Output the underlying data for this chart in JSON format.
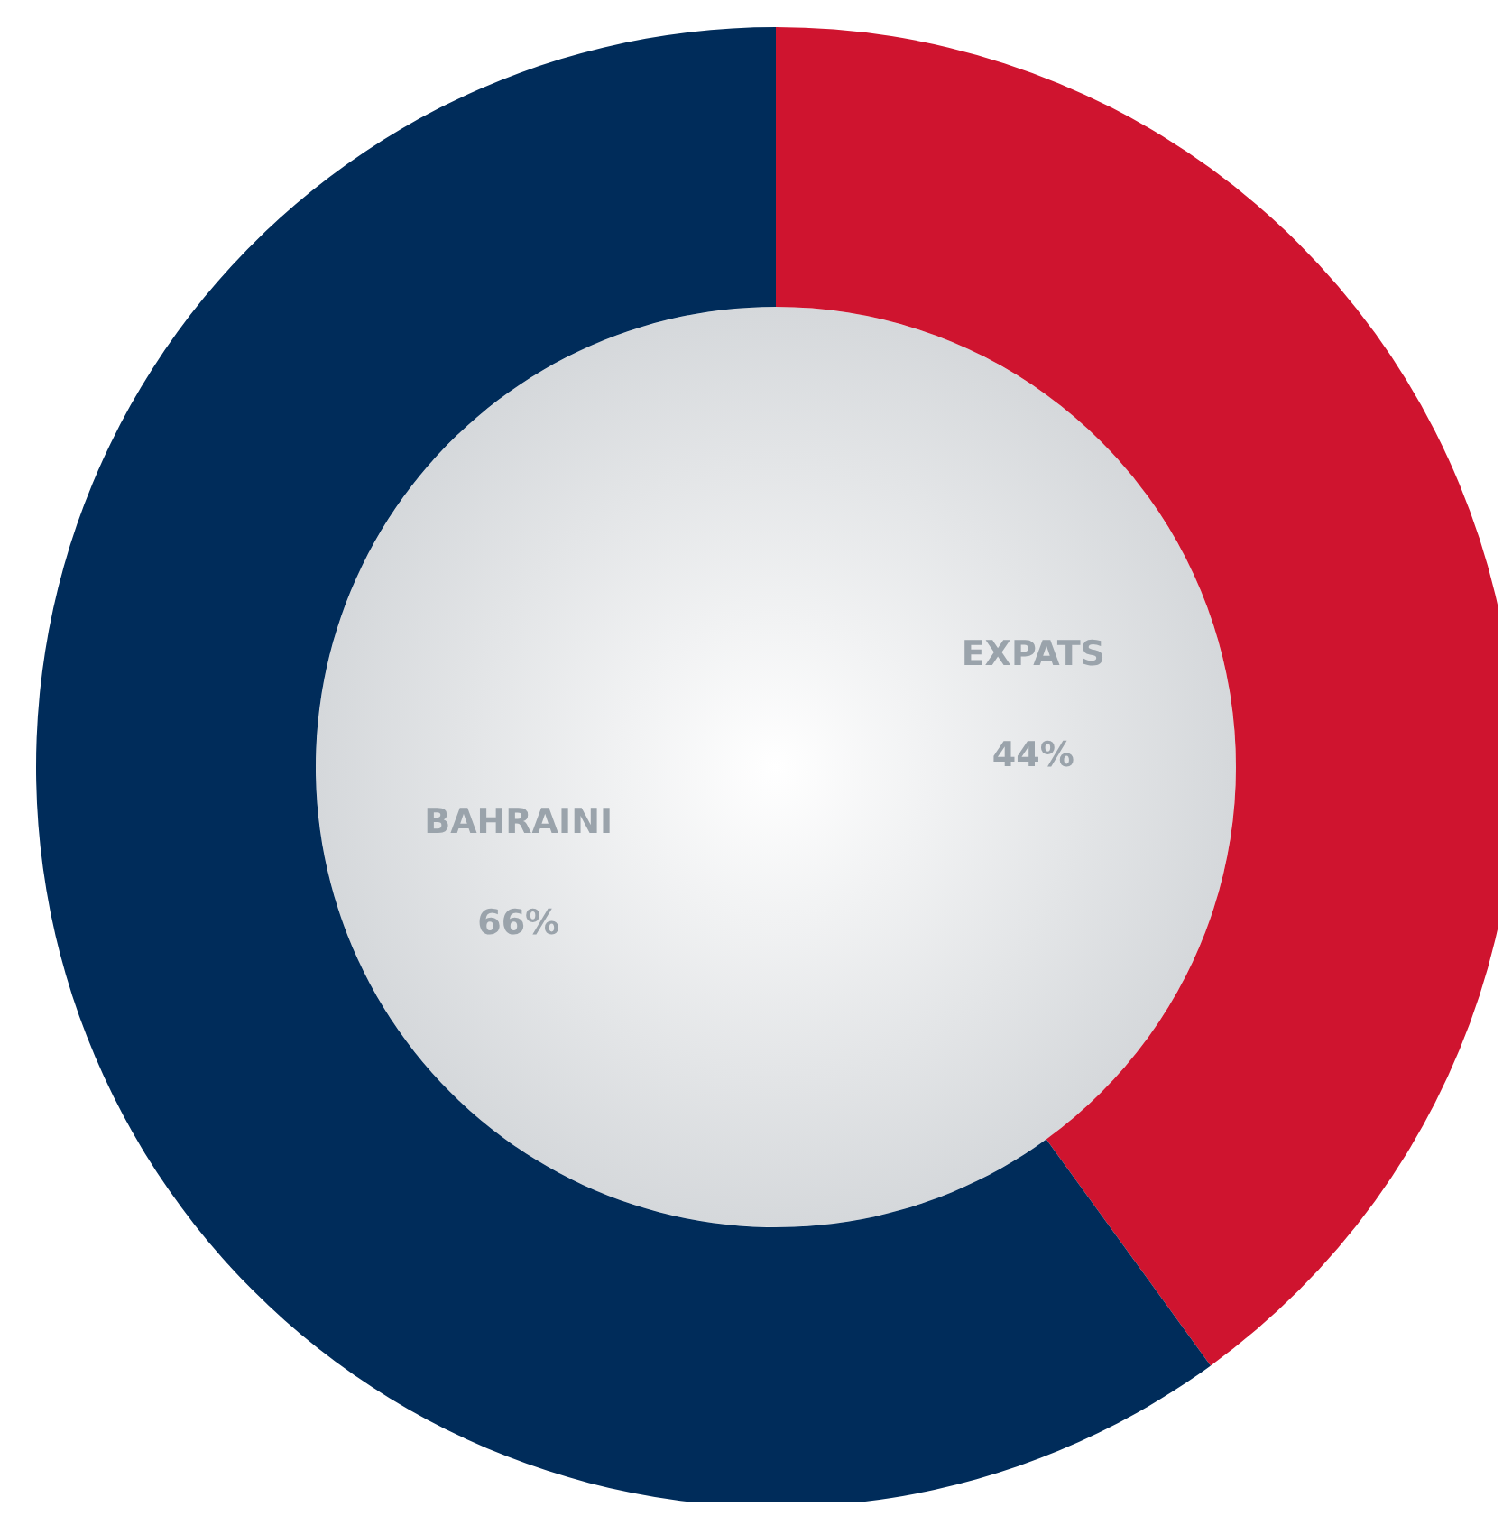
{
  "chart_data": {
    "type": "donut",
    "categories": [
      "EXPATS",
      "BAHRAINI"
    ],
    "values": [
      44,
      66
    ],
    "colors": [
      "#cf142f",
      "#002c5a"
    ],
    "value_labels": [
      "44%",
      "66%"
    ],
    "legend": false
  }
}
